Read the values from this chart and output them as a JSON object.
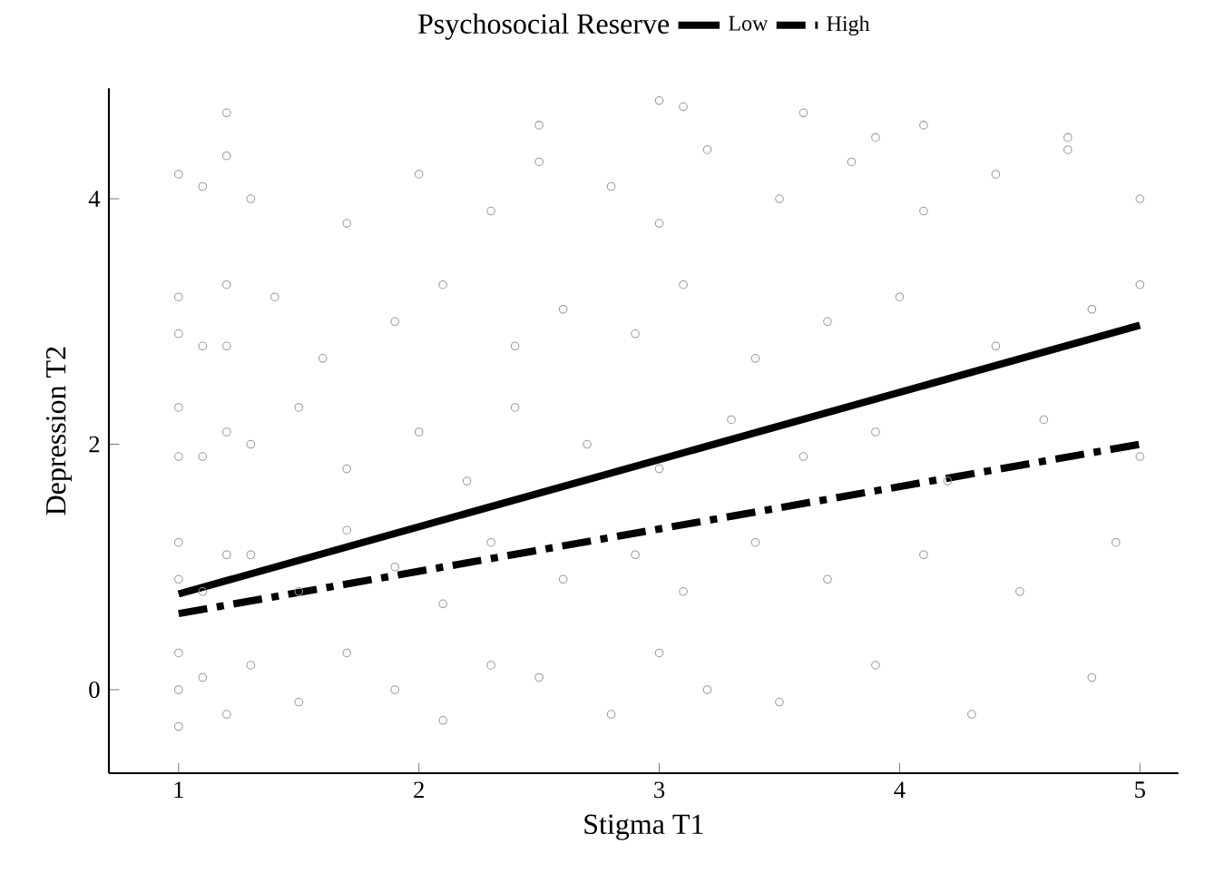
{
  "chart_data": {
    "type": "scatter",
    "xlabel": "Stigma T1",
    "ylabel": "Depression T2",
    "legend_title": "Psychosocial Reserve",
    "xlim": [
      0.71,
      5.16
    ],
    "ylim": [
      -0.68,
      4.9
    ],
    "xticks": [
      1,
      2,
      3,
      4,
      5
    ],
    "yticks": [
      0,
      2,
      4
    ],
    "grid": false,
    "legend": "top",
    "series": [
      {
        "color": "#999999",
        "marker": "circle",
        "x": [
          1,
          1,
          1,
          1,
          1,
          1,
          1,
          1,
          1,
          1,
          1.1,
          1.1,
          1.1,
          1.1,
          1.1,
          1.2,
          1.2,
          1.2,
          1.2,
          1.2,
          1.3,
          1.5,
          1.7,
          1.9,
          2.1,
          2.3,
          2.5,
          2.8,
          3.0,
          3.2,
          3.5,
          3.9,
          4.3,
          4.8,
          1.3,
          1.5,
          1.7,
          1.9,
          2.1,
          2.3,
          2.6,
          2.9,
          3.1,
          3.4,
          3.7,
          4.1,
          4.5,
          4.9,
          1.3,
          1.5,
          1.7,
          2.0,
          2.2,
          2.4,
          2.7,
          3.0,
          3.3,
          3.6,
          3.9,
          4.2,
          4.6,
          5.0,
          1.2,
          1.4,
          1.6,
          1.9,
          2.1,
          2.4,
          2.6,
          2.9,
          3.1,
          3.4,
          3.7,
          4.0,
          4.4,
          4.8,
          5.0,
          1.3,
          1.7,
          2.0,
          2.3,
          2.5,
          2.8,
          3.0,
          3.2,
          3.5,
          3.8,
          4.1,
          4.4,
          4.7,
          5.0,
          1.2,
          2.5,
          3.0,
          3.1,
          3.6,
          3.9,
          4.1,
          4.7
        ],
        "values": [
          0,
          -0.3,
          0.3,
          0.9,
          1.2,
          1.9,
          2.3,
          2.9,
          3.2,
          4.2,
          0.1,
          0.8,
          1.9,
          2.8,
          4.1,
          -0.2,
          1.1,
          2.1,
          3.3,
          4.35,
          0.2,
          -0.1,
          0.3,
          0,
          -0.25,
          0.2,
          0.1,
          -0.2,
          0.3,
          0,
          -0.1,
          0.2,
          -0.2,
          0.1,
          1.1,
          0.8,
          1.3,
          1.0,
          0.7,
          1.2,
          0.9,
          1.1,
          0.8,
          1.2,
          0.9,
          1.1,
          0.8,
          1.2,
          2.0,
          2.3,
          1.8,
          2.1,
          1.7,
          2.3,
          2.0,
          1.8,
          2.2,
          1.9,
          2.1,
          1.7,
          2.2,
          1.9,
          2.8,
          3.2,
          2.7,
          3.0,
          3.3,
          2.8,
          3.1,
          2.9,
          3.3,
          2.7,
          3.0,
          3.2,
          2.8,
          3.1,
          3.3,
          4.0,
          3.8,
          4.2,
          3.9,
          4.3,
          4.1,
          3.8,
          4.4,
          4.0,
          4.3,
          3.9,
          4.2,
          4.4,
          4.0,
          4.7,
          4.6,
          4.8,
          4.75,
          4.7,
          4.5,
          4.6,
          4.5
        ]
      },
      {
        "type": "line",
        "name": "Low",
        "color": "#000000",
        "line_style": "solid",
        "marker": "none",
        "x": [
          1,
          5
        ],
        "values": [
          0.78,
          2.97
        ]
      },
      {
        "type": "line",
        "name": "High",
        "color": "#000000",
        "line_style": "dashed",
        "marker": "none",
        "x": [
          1,
          5
        ],
        "values": [
          0.62,
          2.0
        ]
      }
    ]
  }
}
